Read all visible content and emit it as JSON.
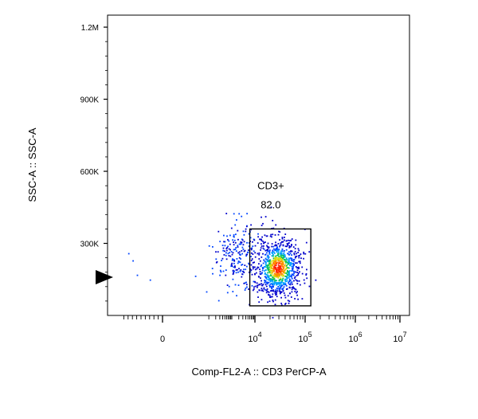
{
  "chart_data": {
    "type": "scatter",
    "xlabel": "Comp-FL2-A :: CD3 PerCP-A",
    "ylabel": "SSC-A :: SSC-A",
    "x_scale": "biexponential",
    "y_scale": "linear",
    "ylim": [
      0,
      1250000
    ],
    "x_ticks": [
      {
        "value": 0,
        "base": "0",
        "exp": ""
      },
      {
        "value": 10000,
        "base": "10",
        "exp": "4"
      },
      {
        "value": 100000,
        "base": "10",
        "exp": "5"
      },
      {
        "value": 1000000,
        "base": "10",
        "exp": "6"
      },
      {
        "value": 10000000,
        "base": "10",
        "exp": "7"
      }
    ],
    "y_ticks": [
      {
        "value": 300000,
        "label": "300K"
      },
      {
        "value": 600000,
        "label": "600K"
      },
      {
        "value": 900000,
        "label": "900K"
      },
      {
        "value": 1200000,
        "label": "1.2M"
      }
    ],
    "gate": {
      "name": "CD3+",
      "percent": "82.0",
      "x_range": [
        6000,
        130000
      ],
      "y_range": [
        40000,
        360000
      ]
    },
    "populations": [
      {
        "name": "",
        "x_center": 1600,
        "y_center": 250000,
        "count": 200
      },
      {
        "name": "",
        "x_center": 28000,
        "y_center": 200000,
        "count": 900
      }
    ],
    "density_colors": [
      "#0000cc",
      "#0044ff",
      "#00a0ff",
      "#00c060",
      "#d8d800",
      "#ff8800",
      "#ff2200"
    ],
    "marker_color": "#000000"
  }
}
